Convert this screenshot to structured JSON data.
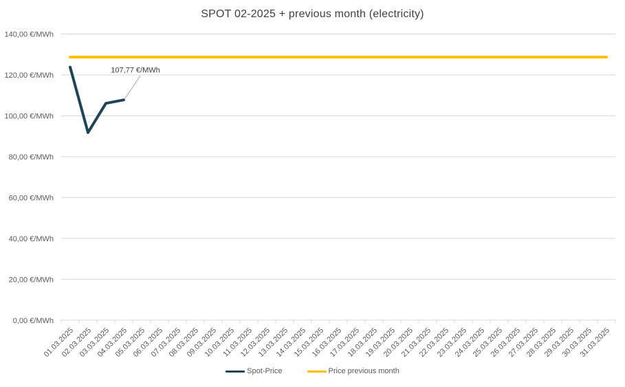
{
  "chart_data": {
    "type": "line",
    "title": "SPOT 02-2025 + previous month (electricity)",
    "categories": [
      "01.03.2025",
      "02.03.2025",
      "03.03.2025",
      "04.03.2025",
      "05.03.2025",
      "06.03.2025",
      "07.03.2025",
      "08.03.2025",
      "09.03.2025",
      "10.03.2025",
      "11.03.2025",
      "12.03.2025",
      "13.03.2025",
      "14.03.2025",
      "15.03.2025",
      "16.03.2025",
      "17.03.2025",
      "18.03.2025",
      "19.03.2025",
      "20.03.2025",
      "21.03.2025",
      "22.03.2025",
      "23.03.2025",
      "24.03.2025",
      "25.03.2025",
      "26.03.2025",
      "27.03.2025",
      "28.03.2025",
      "29.03.2025",
      "30.03.2025",
      "31.03.2025"
    ],
    "y_axis": {
      "min": 0,
      "max": 140,
      "step": 20,
      "tick_labels": [
        "0,00 €/MWh",
        "20,00 €/MWh",
        "40,00 €/MWh",
        "60,00 €/MWh",
        "80,00 €/MWh",
        "100,00 €/MWh",
        "120,00 €/MWh",
        "140,00 €/MWh"
      ]
    },
    "series": [
      {
        "name": "Spot-Price",
        "color": "#1f4459",
        "values": [
          123.8,
          91.8,
          106.1,
          107.77,
          null,
          null,
          null,
          null,
          null,
          null,
          null,
          null,
          null,
          null,
          null,
          null,
          null,
          null,
          null,
          null,
          null,
          null,
          null,
          null,
          null,
          null,
          null,
          null,
          null,
          null,
          null
        ]
      },
      {
        "name": "Price previous month",
        "color": "#ffc000",
        "constant_value": 128.7
      }
    ],
    "annotation": {
      "label": "107,77 €/MWh",
      "series": "Spot-Price",
      "category": "04.03.2025",
      "value": 107.77
    },
    "legend_position": "bottom",
    "grid": true
  },
  "colors": {
    "background": "#ffffff",
    "gridline": "#d9d9d9",
    "axis_text": "#595959",
    "title_text": "#404040",
    "annotation_text": "#404040",
    "leader_line": "#a6a6a6",
    "spot_line": "#1f4459",
    "previous_month_line": "#ffc000"
  }
}
